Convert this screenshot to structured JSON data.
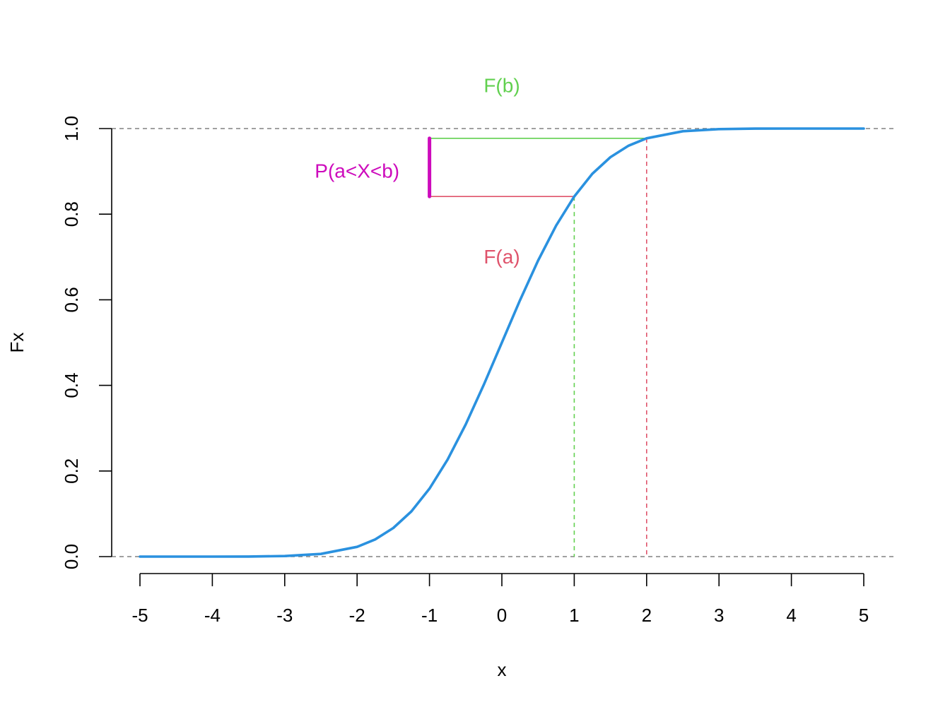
{
  "chart_data": {
    "type": "line",
    "title": "",
    "xlabel": "x",
    "ylabel": "Fx",
    "xlim": [
      -5,
      5
    ],
    "ylim": [
      0,
      1
    ],
    "x_ticks": [
      "-5",
      "-4",
      "-3",
      "-2",
      "-1",
      "0",
      "1",
      "2",
      "3",
      "4",
      "5"
    ],
    "y_ticks": [
      "0.0",
      "0.2",
      "0.4",
      "0.6",
      "0.8",
      "1.0"
    ],
    "grid": false,
    "series": [
      {
        "x": [
          -5,
          -4.5,
          -4,
          -3.5,
          -3,
          -2.5,
          -2,
          -1.75,
          -1.5,
          -1.25,
          -1,
          -0.75,
          -0.5,
          -0.25,
          0,
          0.25,
          0.5,
          0.75,
          1,
          1.25,
          1.5,
          1.75,
          2,
          2.5,
          3,
          3.5,
          4,
          4.5,
          5
        ],
        "y": [
          0.0,
          0.0,
          0.0,
          0.0002,
          0.0013,
          0.0062,
          0.0228,
          0.0401,
          0.0668,
          0.1056,
          0.1587,
          0.2266,
          0.3085,
          0.4013,
          0.5,
          0.5987,
          0.6915,
          0.7734,
          0.8413,
          0.8944,
          0.9332,
          0.9599,
          0.9772,
          0.9938,
          0.9987,
          0.9998,
          1.0,
          1.0,
          1.0
        ],
        "color": "#2a91df"
      }
    ],
    "reference_lines": {
      "horizontal_dashed": [
        0,
        1
      ],
      "a": 1,
      "b": 2,
      "F_a": 0.8413,
      "F_b": 0.9772,
      "segment_x": -1
    },
    "annotations": [
      {
        "text": "F(b)",
        "color": "#61d04f",
        "x": 0,
        "y": 1.1
      },
      {
        "text": "F(a)",
        "color": "#df536b",
        "x": 0,
        "y": 0.7
      },
      {
        "text": "P(a<X<b)",
        "color": "#cd0bbc",
        "x": -2,
        "y": 0.9
      }
    ],
    "colors": {
      "curve": "#2a91df",
      "F_a": "#df536b",
      "F_b": "#61d04f",
      "prob": "#cd0bbc",
      "ref": "#808080"
    }
  }
}
